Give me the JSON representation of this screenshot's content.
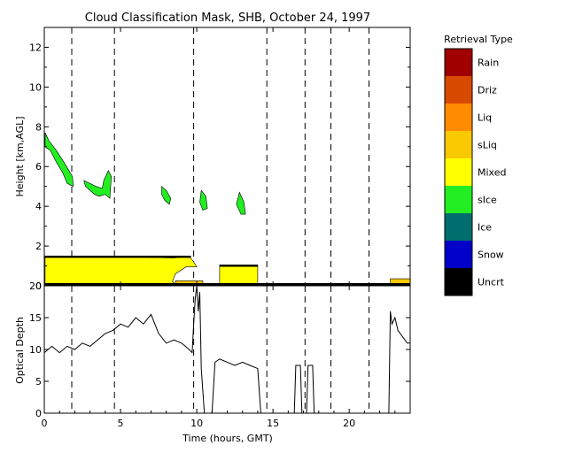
{
  "chart_data": [
    {
      "type": "heatmap",
      "title": "Cloud Classification Mask, SHB, October 24, 1997",
      "ylabel": "Height [km,AGL]",
      "xlim": [
        0,
        24
      ],
      "ylim": [
        0,
        13
      ],
      "xticks": [
        "0",
        "5",
        "10",
        "15",
        "20"
      ],
      "yticks": [
        "0",
        "2",
        "4",
        "6",
        "8",
        "10",
        "12"
      ],
      "legend": {
        "title": "Retrieval Type",
        "placement": "right",
        "entries": [
          {
            "label": "Rain",
            "color": "#a00000"
          },
          {
            "label": "Driz",
            "color": "#d84a00"
          },
          {
            "label": "Liq",
            "color": "#ff8c00"
          },
          {
            "label": "sLiq",
            "color": "#f8c800"
          },
          {
            "label": "Mixed",
            "color": "#ffff00"
          },
          {
            "label": "sIce",
            "color": "#22ee22"
          },
          {
            "label": "Ice",
            "color": "#006e6e"
          },
          {
            "label": "Snow",
            "color": "#0000c8"
          },
          {
            "label": "Uncrt",
            "color": "#000000"
          }
        ]
      },
      "regions": [
        {
          "type": "Mixed",
          "points": [
            [
              0.05,
              1.45
            ],
            [
              1,
              1.5
            ],
            [
              3,
              1.48
            ],
            [
              6,
              1.45
            ],
            [
              8.5,
              1.4
            ],
            [
              9.5,
              1.5
            ],
            [
              9.8,
              1.2
            ],
            [
              10,
              0.95
            ],
            [
              9.3,
              0.95
            ],
            [
              8.6,
              0.6
            ],
            [
              8.4,
              0.2
            ],
            [
              8.7,
              0.05
            ],
            [
              8.5,
              0.03
            ],
            [
              0.05,
              0.03
            ]
          ]
        },
        {
          "type": "Mixed",
          "points": [
            [
              11.5,
              1.0
            ],
            [
              14,
              1.0
            ],
            [
              14,
              0.03
            ],
            [
              11.5,
              0.03
            ]
          ]
        },
        {
          "type": "sLiq",
          "points": [
            [
              8.6,
              0.25
            ],
            [
              10.4,
              0.25
            ],
            [
              10.4,
              0.05
            ],
            [
              8.6,
              0.05
            ]
          ]
        },
        {
          "type": "sLiq",
          "points": [
            [
              22.7,
              0.35
            ],
            [
              24,
              0.35
            ],
            [
              24,
              0.05
            ],
            [
              22.7,
              0.05
            ]
          ]
        },
        {
          "type": "sIce",
          "points": [
            [
              0.05,
              7.7
            ],
            [
              0.3,
              7.3
            ],
            [
              0.8,
              6.8
            ],
            [
              1.3,
              6.2
            ],
            [
              1.85,
              5.5
            ],
            [
              1.9,
              5.0
            ],
            [
              1.5,
              5.15
            ],
            [
              1.2,
              5.7
            ],
            [
              0.8,
              6.2
            ],
            [
              0.4,
              6.8
            ],
            [
              0.05,
              7.0
            ]
          ]
        },
        {
          "type": "sIce",
          "points": [
            [
              2.6,
              5.3
            ],
            [
              3.4,
              5.0
            ],
            [
              3.8,
              4.9
            ],
            [
              3.9,
              5.3
            ],
            [
              4.2,
              5.8
            ],
            [
              4.4,
              5.5
            ],
            [
              4.3,
              4.4
            ],
            [
              4.0,
              4.6
            ],
            [
              3.6,
              4.5
            ],
            [
              3.3,
              4.6
            ],
            [
              2.7,
              5.0
            ]
          ]
        },
        {
          "type": "sIce",
          "points": [
            [
              7.7,
              5.0
            ],
            [
              8.0,
              4.8
            ],
            [
              8.3,
              4.4
            ],
            [
              8.2,
              4.1
            ],
            [
              7.9,
              4.3
            ],
            [
              7.7,
              4.6
            ]
          ]
        },
        {
          "type": "sIce",
          "points": [
            [
              10.3,
              4.8
            ],
            [
              10.6,
              4.5
            ],
            [
              10.7,
              3.9
            ],
            [
              10.4,
              3.8
            ],
            [
              10.2,
              4.2
            ]
          ]
        },
        {
          "type": "sIce",
          "points": [
            [
              12.8,
              4.7
            ],
            [
              13.1,
              4.2
            ],
            [
              13.2,
              3.6
            ],
            [
              12.9,
              3.6
            ],
            [
              12.6,
              4.1
            ]
          ]
        },
        {
          "type": "Uncrt",
          "points": [
            [
              0.05,
              0.12
            ],
            [
              24,
              0.12
            ],
            [
              24,
              0.03
            ],
            [
              0.05,
              0.03
            ]
          ]
        },
        {
          "type": "Uncrt",
          "points": [
            [
              0.05,
              1.5
            ],
            [
              9.6,
              1.5
            ],
            [
              9.6,
              1.42
            ],
            [
              0.05,
              1.42
            ]
          ]
        },
        {
          "type": "Uncrt",
          "points": [
            [
              11.5,
              1.05
            ],
            [
              14,
              1.05
            ],
            [
              14,
              0.97
            ],
            [
              11.5,
              0.97
            ]
          ]
        }
      ]
    },
    {
      "type": "line",
      "ylabel": "Optical Depth",
      "xlabel": "Time (hours, GMT)",
      "xlim": [
        0,
        24
      ],
      "ylim": [
        0,
        20
      ],
      "xticks": [
        "0",
        "5",
        "10",
        "15",
        "20"
      ],
      "yticks": [
        "0",
        "5",
        "10",
        "15",
        "20"
      ],
      "color": "#000000",
      "x": [
        0,
        0.5,
        1,
        1.5,
        2,
        2.5,
        3,
        3.5,
        4,
        4.5,
        5,
        5.5,
        6,
        6.5,
        7,
        7.5,
        8,
        8.5,
        9,
        9.5,
        9.7,
        9.8,
        9.9,
        10,
        10.1,
        10.2,
        10.3,
        10.5,
        10.8,
        11,
        11.2,
        11.5,
        12,
        12.5,
        13,
        13.5,
        14,
        14.2,
        16.4,
        16.5,
        16.8,
        16.9,
        17.2,
        17.3,
        17.6,
        17.7,
        22.6,
        22.7,
        22.8,
        23,
        23.2,
        23.5,
        23.8,
        24
      ],
      "y": [
        9.5,
        10.5,
        9.5,
        10.5,
        10,
        11,
        10.5,
        11.5,
        12.5,
        13,
        14,
        13.5,
        15,
        14,
        15.5,
        12.5,
        11,
        11.5,
        11,
        10,
        9.5,
        14,
        18,
        20,
        16,
        19,
        7,
        0,
        0,
        0,
        8,
        8.5,
        8,
        7.5,
        8,
        7.5,
        7,
        0,
        0,
        7.5,
        7.5,
        0,
        0,
        7.5,
        7.5,
        0,
        0,
        16,
        14,
        15,
        13,
        12,
        11,
        11
      ]
    }
  ],
  "dashed_times": [
    1.8,
    4.6,
    9.8,
    14.6,
    17.1,
    18.8,
    21.3
  ]
}
